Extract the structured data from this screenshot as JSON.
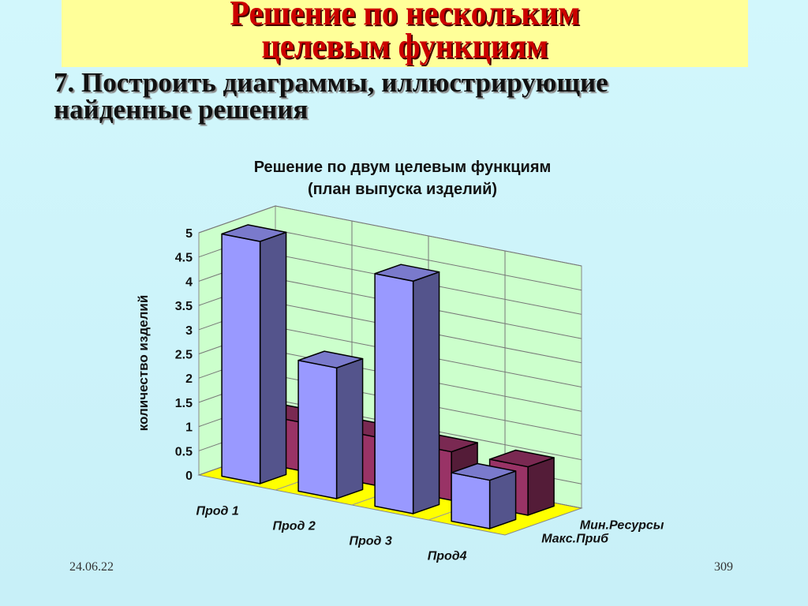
{
  "slide": {
    "title_line1": "Решение по нескольким",
    "title_line2": "целевым функциям",
    "subtitle_line1": "7. Построить диаграммы, иллюстрирующие",
    "subtitle_line2": "найденные решения",
    "date": "24.06.22",
    "page_number": "309"
  },
  "chart_data": {
    "type": "bar",
    "subtype": "3d-column",
    "title_line1": "Решение по двум целевым функциям",
    "title_line2": "(план выпуска изделий)",
    "ylabel": "количество изделий",
    "categories": [
      "Прод 1",
      "Прод 2",
      "Прод 3",
      "Прод4"
    ],
    "ylim": [
      0,
      5
    ],
    "yticks": [
      "0",
      "0.5",
      "1",
      "1.5",
      "2",
      "2.5",
      "3",
      "3.5",
      "4",
      "4.5",
      "5"
    ],
    "grid": true,
    "series": [
      {
        "name": "Макс.Приб",
        "values": [
          5,
          2.7,
          4.8,
          1
        ],
        "color": "#9999ff"
      },
      {
        "name": "Мин.Ресурсы",
        "values": [
          1,
          1,
          1,
          1
        ],
        "color": "#993366"
      }
    ],
    "colors": {
      "back_wall": "#ccffcc",
      "floor": "#ffff00"
    }
  }
}
